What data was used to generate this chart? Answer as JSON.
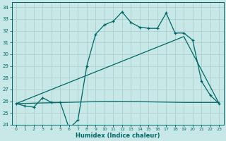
{
  "xlabel": "Humidex (Indice chaleur)",
  "bg_color": "#c8e8e8",
  "grid_color": "#b8d8d8",
  "line_color": "#006666",
  "xlim": [
    -0.5,
    23.5
  ],
  "ylim": [
    24,
    34.4
  ],
  "yticks": [
    24,
    25,
    26,
    27,
    28,
    29,
    30,
    31,
    32,
    33,
    34
  ],
  "xticks": [
    0,
    1,
    2,
    3,
    4,
    5,
    6,
    7,
    8,
    9,
    10,
    11,
    12,
    13,
    14,
    15,
    16,
    17,
    18,
    19,
    20,
    21,
    22,
    23
  ],
  "line1_x": [
    0,
    1,
    2,
    3,
    4,
    5,
    6,
    7,
    8,
    9,
    10,
    11,
    12,
    13,
    14,
    15,
    16,
    17,
    18,
    19,
    20,
    21,
    22,
    23
  ],
  "line1_y": [
    25.8,
    25.6,
    25.5,
    26.3,
    25.9,
    25.9,
    23.7,
    24.4,
    29.0,
    31.7,
    32.5,
    32.8,
    33.6,
    32.7,
    32.3,
    32.2,
    32.2,
    33.5,
    31.8,
    31.8,
    31.2,
    27.7,
    26.5,
    25.8
  ],
  "line2_x": [
    0,
    11,
    19,
    23
  ],
  "line2_y": [
    25.8,
    26.0,
    25.9,
    25.9
  ],
  "line3_x": [
    0,
    19,
    23
  ],
  "line3_y": [
    25.8,
    31.5,
    25.8
  ]
}
